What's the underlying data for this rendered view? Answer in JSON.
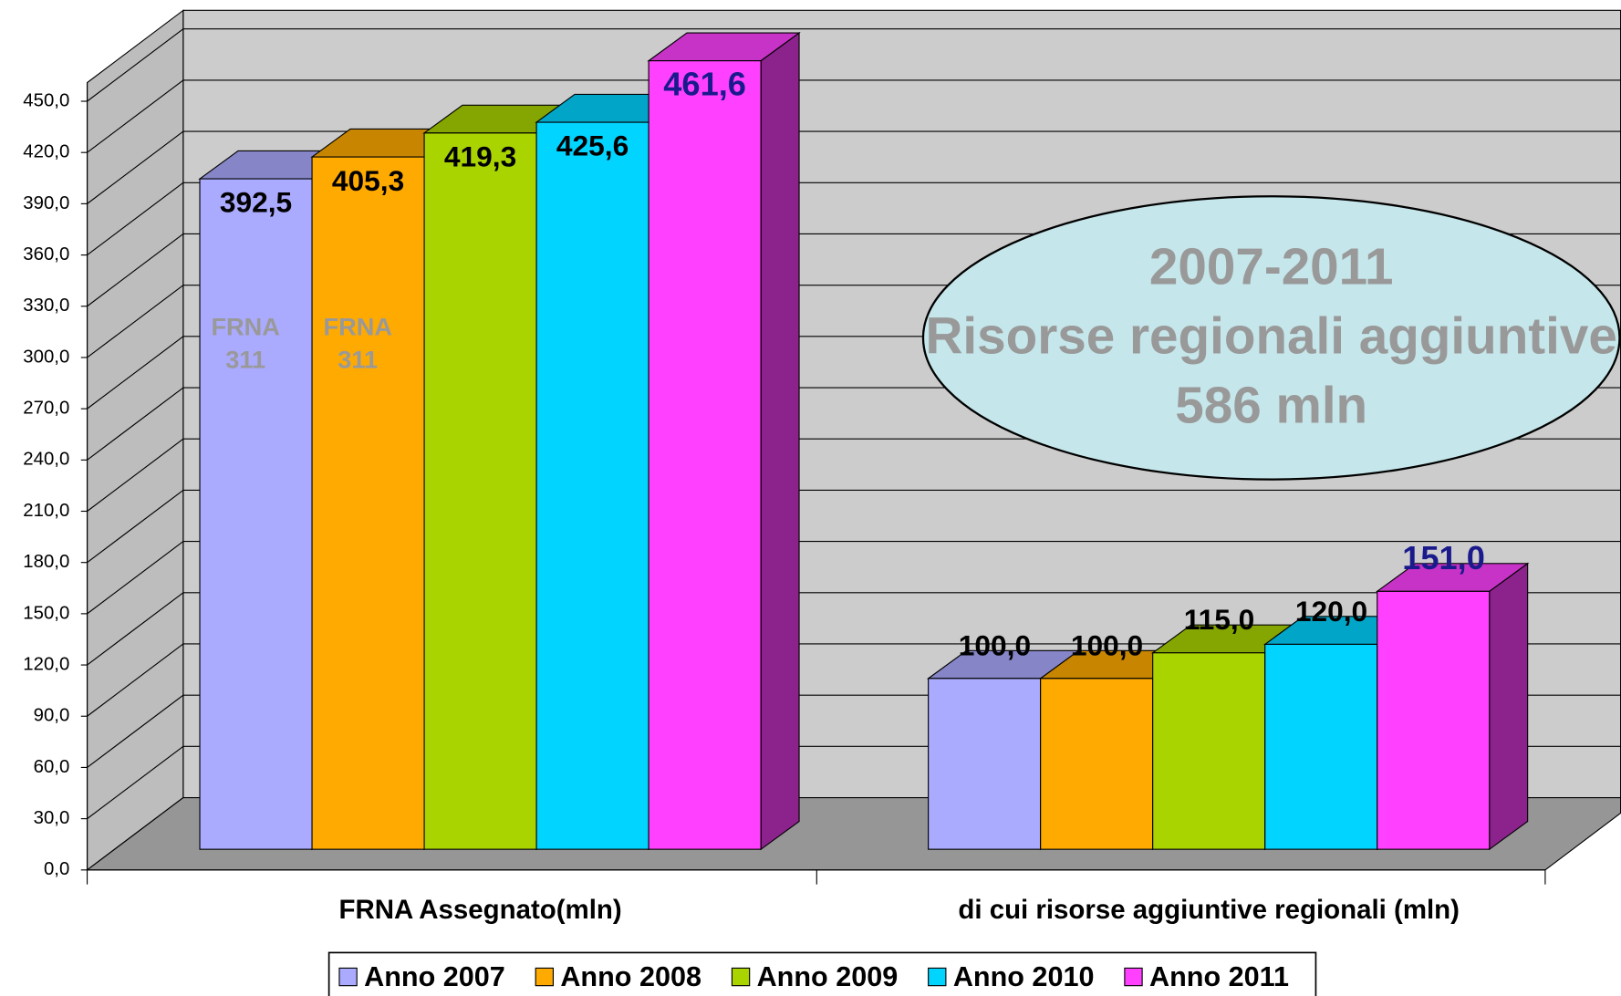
{
  "chart_data": {
    "type": "bar3d",
    "categories": [
      "FRNA Assegnato(mln)",
      "di cui risorse aggiuntive regionali (mln)"
    ],
    "series": [
      {
        "name": "Anno 2007",
        "color": "#aaaaff",
        "values": [
          392.5,
          100.0
        ],
        "value_labels": [
          "392,5",
          "100,0"
        ],
        "label_color": "#000000"
      },
      {
        "name": "Anno 2008",
        "color": "#ffaa00",
        "values": [
          405.3,
          100.0
        ],
        "value_labels": [
          "405,3",
          "100,0"
        ],
        "label_color": "#000000"
      },
      {
        "name": "Anno 2009",
        "color": "#aad400",
        "values": [
          419.3,
          115.0
        ],
        "value_labels": [
          "419,3",
          "115,0"
        ],
        "label_color": "#000000"
      },
      {
        "name": "Anno 2010",
        "color": "#00d4ff",
        "values": [
          425.6,
          120.0
        ],
        "value_labels": [
          "425,6",
          "120,0"
        ],
        "label_color": "#000000"
      },
      {
        "name": "Anno 2011",
        "color": "#ff40ff",
        "values": [
          461.6,
          151.0
        ],
        "value_labels": [
          "461,6",
          "151,0"
        ],
        "label_color": "#1a1a8c"
      }
    ],
    "ylim": [
      0,
      450
    ],
    "yticks": [
      {
        "value": 0,
        "label": "0,0"
      },
      {
        "value": 30,
        "label": "30,0"
      },
      {
        "value": 60,
        "label": "60,0"
      },
      {
        "value": 90,
        "label": "90,0"
      },
      {
        "value": 120,
        "label": "120,0"
      },
      {
        "value": 150,
        "label": "150,0"
      },
      {
        "value": 180,
        "label": "180,0"
      },
      {
        "value": 210,
        "label": "210,0"
      },
      {
        "value": 240,
        "label": "240,0"
      },
      {
        "value": 270,
        "label": "270,0"
      },
      {
        "value": 300,
        "label": "300,0"
      },
      {
        "value": 330,
        "label": "330,0"
      },
      {
        "value": 360,
        "label": "360,0"
      },
      {
        "value": 390,
        "label": "390,0"
      },
      {
        "value": 420,
        "label": "420,0"
      },
      {
        "value": 450,
        "label": "450,0"
      }
    ],
    "grid": true,
    "legend": "bottom",
    "bar_notes": [
      [
        "FRNA",
        "311"
      ],
      [
        "FRNA",
        "311"
      ]
    ],
    "callout": [
      "2007-2011",
      "Risorse regionali aggiuntive",
      "586 mln"
    ]
  }
}
